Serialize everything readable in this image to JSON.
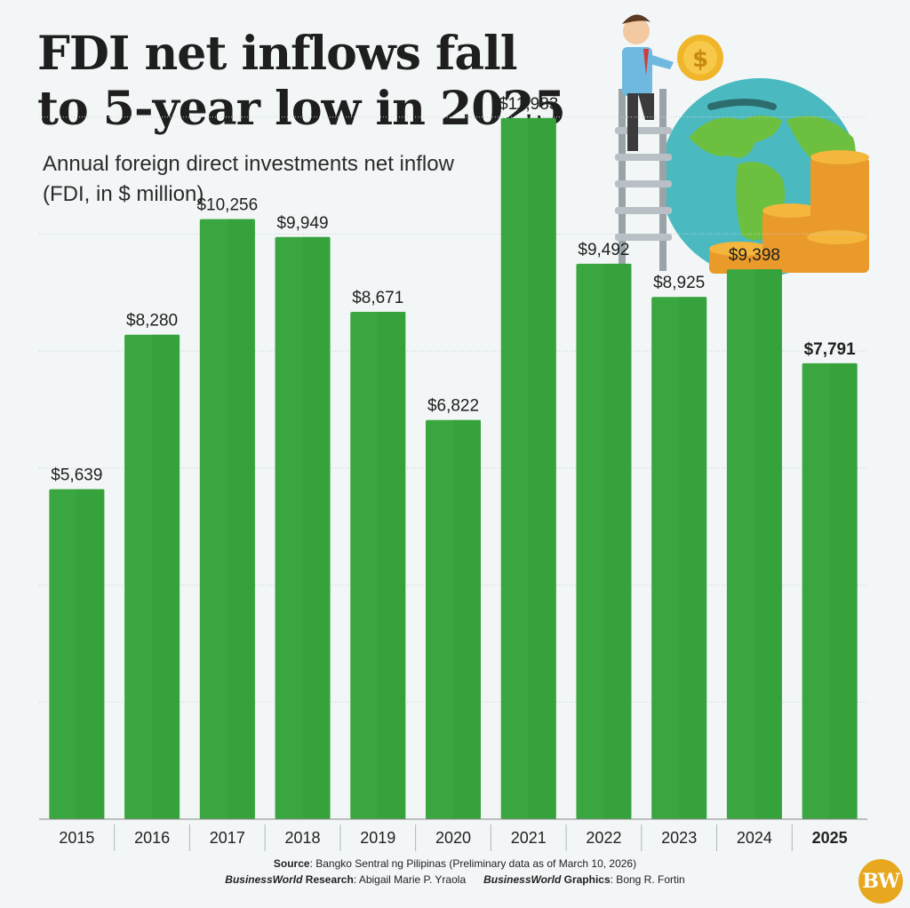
{
  "header": {
    "title_line1": "FDI net inflows fall",
    "title_line2": "to 5-year low in 2025",
    "subtitle_line1": "Annual foreign direct investments net inflow",
    "subtitle_line2": "(FDI, in $ million)"
  },
  "chart_data": {
    "type": "bar",
    "title": "FDI net inflows fall to 5-year low in 2025",
    "subtitle": "Annual foreign direct investments net inflow (FDI, in $ million)",
    "categories": [
      "2015",
      "2016",
      "2017",
      "2018",
      "2019",
      "2020",
      "2021",
      "2022",
      "2023",
      "2024",
      "2025"
    ],
    "values": [
      5639,
      8280,
      10256,
      9949,
      8671,
      6822,
      11983,
      9492,
      8925,
      9398,
      7791
    ],
    "value_labels": [
      "$5,639",
      "$8,280",
      "$10,256",
      "$9,949",
      "$8,671",
      "$6,822",
      "$11,983",
      "$9,492",
      "$8,925",
      "$9,398",
      "$7,791"
    ],
    "highlight_category": "2025",
    "ylim": [
      0,
      14000
    ],
    "grid": true,
    "bar_color": "#3aa63f",
    "bar_shadow_color": "#34a03a"
  },
  "footer": {
    "source_label": "Source",
    "source_text": ": Bangko Sentral ng Pilipinas (Preliminary data as of March 10, 2026)",
    "research_brand": "BusinessWorld",
    "research_label": " Research",
    "research_name": ": Abigail Marie P. Yraola",
    "graphics_brand": "BusinessWorld",
    "graphics_label": " Graphics",
    "graphics_name": ": Bong R. Fortin"
  },
  "logo": {
    "text": "BW",
    "color": "#e7a81f"
  }
}
